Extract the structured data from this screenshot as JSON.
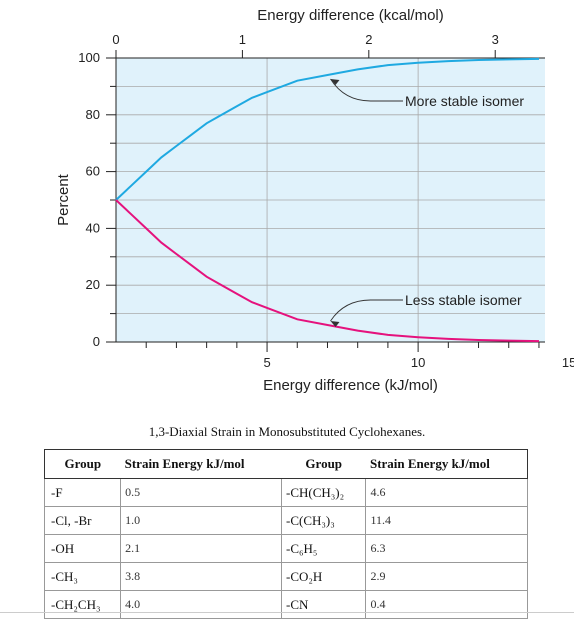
{
  "chart_data": {
    "type": "line",
    "title": "",
    "xlabel": "Energy difference (kJ/mol)",
    "ylabel": "Percent",
    "top_xlabel": "Energy difference (kcal/mol)",
    "xlim": [
      0,
      14.2
    ],
    "ylim": [
      0,
      100
    ],
    "x_ticks": [
      "5",
      "10",
      "15"
    ],
    "top_x_ticks": [
      "0",
      "1",
      "2",
      "3"
    ],
    "y_ticks": [
      "0",
      "20",
      "40",
      "60",
      "80",
      "100"
    ],
    "grid": true,
    "series": [
      {
        "name": "More stable isomer",
        "color": "#1fa9e1",
        "x": [
          0,
          0.5,
          1,
          1.5,
          2,
          2.5,
          3,
          3.5,
          4,
          4.5,
          5,
          6,
          7,
          8,
          9,
          10,
          11,
          12,
          13,
          14
        ],
        "y": [
          50,
          55,
          60,
          65,
          69,
          73,
          77,
          80,
          83,
          86,
          88,
          92,
          94,
          96,
          97.5,
          98.3,
          98.9,
          99.3,
          99.5,
          99.7
        ]
      },
      {
        "name": "Less stable isomer",
        "color": "#e5127d",
        "x": [
          0,
          0.5,
          1,
          1.5,
          2,
          2.5,
          3,
          3.5,
          4,
          4.5,
          5,
          6,
          7,
          8,
          9,
          10,
          11,
          12,
          13,
          14
        ],
        "y": [
          50,
          45,
          40,
          35,
          31,
          27,
          23,
          20,
          17,
          14,
          12,
          8,
          6,
          4,
          2.5,
          1.7,
          1.1,
          0.7,
          0.5,
          0.3
        ]
      }
    ],
    "annotations": [
      "More stable isomer",
      "Less stable isomer"
    ],
    "colors": {
      "plot_background": "#e0f2fb",
      "grid": "#a9a9a9"
    }
  },
  "table": {
    "caption": "1,3-Diaxial Strain in Monosubstituted Cyclohexanes.",
    "headers": [
      "Group",
      "Strain Energy kJ/mol",
      "Group",
      "Strain Energy kJ/mol"
    ],
    "rows": [
      [
        "-F",
        "0.5",
        "-CH(CH₃)₂",
        "4.6"
      ],
      [
        "-Cl, -Br",
        "1.0",
        "-C(CH₃)₃",
        "11.4"
      ],
      [
        "-OH",
        "2.1",
        "-C₆H₅",
        "6.3"
      ],
      [
        "-CH₃",
        "3.8",
        "-CO₂H",
        "2.9"
      ],
      [
        "-CH₂CH₃",
        "4.0",
        "-CN",
        "0.4"
      ]
    ]
  }
}
